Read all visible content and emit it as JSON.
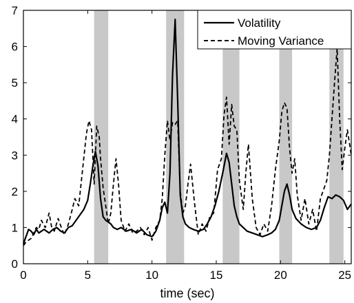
{
  "chart_data": {
    "type": "line",
    "xlabel": "time (sec)",
    "ylabel": "",
    "xlim": [
      0,
      25.5
    ],
    "ylim": [
      0,
      7
    ],
    "x_ticks": [
      0,
      5,
      10,
      15,
      20,
      25
    ],
    "y_ticks": [
      0,
      1,
      2,
      3,
      4,
      5,
      6,
      7
    ],
    "grid": false,
    "legend_position": "top-right",
    "shaded_intervals": [
      [
        5.5,
        6.6
      ],
      [
        11.1,
        12.5
      ],
      [
        15.5,
        16.8
      ],
      [
        19.9,
        20.9
      ],
      [
        23.8,
        24.9
      ]
    ],
    "shade_color": "#c8c8c8",
    "series": [
      {
        "name": "Volatility",
        "style": "solid",
        "color": "#000000",
        "x": [
          0,
          0.2,
          0.4,
          0.6,
          0.8,
          1.0,
          1.2,
          1.4,
          1.6,
          1.8,
          2.0,
          2.3,
          2.6,
          2.9,
          3.2,
          3.5,
          3.8,
          4.1,
          4.4,
          4.7,
          5.0,
          5.2,
          5.4,
          5.6,
          5.8,
          6.0,
          6.2,
          6.4,
          6.6,
          6.8,
          7.0,
          7.3,
          7.6,
          8.0,
          8.4,
          8.8,
          9.2,
          9.6,
          10.0,
          10.3,
          10.6,
          10.8,
          11.0,
          11.2,
          11.4,
          11.6,
          11.8,
          12.0,
          12.2,
          12.4,
          12.6,
          12.9,
          13.2,
          13.6,
          14.0,
          14.3,
          14.6,
          14.9,
          15.2,
          15.5,
          15.8,
          16.0,
          16.2,
          16.4,
          16.6,
          16.8,
          17.1,
          17.4,
          17.8,
          18.2,
          18.6,
          19.0,
          19.3,
          19.6,
          19.9,
          20.1,
          20.3,
          20.5,
          20.7,
          20.9,
          21.2,
          21.6,
          22.0,
          22.4,
          22.8,
          23.1,
          23.4,
          23.7,
          24.0,
          24.3,
          24.6,
          24.9,
          25.2,
          25.5
        ],
        "y": [
          0.55,
          0.75,
          0.95,
          0.9,
          0.8,
          0.95,
          0.85,
          0.9,
          0.95,
          0.9,
          0.85,
          0.95,
          1.0,
          0.9,
          0.85,
          1.0,
          1.05,
          1.2,
          1.35,
          1.5,
          1.75,
          2.2,
          2.7,
          3.1,
          2.7,
          1.8,
          1.3,
          1.2,
          1.15,
          1.1,
          1.0,
          0.95,
          1.0,
          0.9,
          0.95,
          0.85,
          0.95,
          0.8,
          0.75,
          0.9,
          1.2,
          1.55,
          1.7,
          1.4,
          2.5,
          5.2,
          6.75,
          4.5,
          1.9,
          1.3,
          1.1,
          1.0,
          0.95,
          0.9,
          0.95,
          1.1,
          1.3,
          1.6,
          2.0,
          2.5,
          3.05,
          2.8,
          2.2,
          1.6,
          1.3,
          1.1,
          1.0,
          0.9,
          0.85,
          0.8,
          0.75,
          0.8,
          0.85,
          0.95,
          1.2,
          1.6,
          2.0,
          2.2,
          1.9,
          1.5,
          1.25,
          1.1,
          1.0,
          0.95,
          1.0,
          1.2,
          1.55,
          1.85,
          1.8,
          1.9,
          1.85,
          1.75,
          1.5,
          1.65
        ]
      },
      {
        "name": "Moving Variance",
        "style": "dashed",
        "color": "#000000",
        "x": [
          0,
          0.2,
          0.4,
          0.6,
          0.8,
          1.0,
          1.2,
          1.4,
          1.7,
          2.0,
          2.2,
          2.4,
          2.7,
          3.0,
          3.2,
          3.5,
          3.8,
          4.0,
          4.3,
          4.6,
          4.9,
          5.1,
          5.3,
          5.5,
          5.7,
          5.9,
          6.0,
          6.2,
          6.4,
          6.6,
          6.8,
          7.0,
          7.2,
          7.4,
          7.6,
          7.9,
          8.2,
          8.5,
          8.8,
          9.1,
          9.4,
          9.7,
          10.0,
          10.3,
          10.6,
          10.8,
          11.0,
          11.2,
          11.4,
          11.6,
          11.8,
          12.0,
          12.2,
          12.4,
          12.6,
          12.8,
          13.0,
          13.3,
          13.6,
          13.9,
          14.2,
          14.5,
          14.8,
          15.1,
          15.4,
          15.6,
          15.8,
          16.0,
          16.2,
          16.4,
          16.6,
          16.8,
          17.1,
          17.3,
          17.5,
          17.8,
          18.1,
          18.4,
          18.7,
          19.0,
          19.3,
          19.6,
          19.9,
          20.1,
          20.3,
          20.5,
          20.7,
          20.9,
          21.1,
          21.3,
          21.6,
          21.9,
          22.2,
          22.5,
          22.8,
          23.1,
          23.4,
          23.6,
          23.8,
          24.0,
          24.2,
          24.4,
          24.6,
          24.8,
          25.0,
          25.2,
          25.5
        ],
        "y": [
          0.5,
          0.6,
          0.65,
          0.7,
          0.85,
          1.0,
          0.95,
          1.2,
          1.0,
          1.4,
          1.0,
          0.9,
          1.25,
          0.95,
          0.8,
          1.1,
          1.5,
          1.8,
          1.6,
          2.6,
          3.6,
          3.95,
          3.7,
          2.2,
          3.8,
          3.5,
          2.9,
          2.1,
          1.6,
          1.1,
          1.4,
          2.2,
          2.9,
          2.2,
          1.2,
          0.9,
          1.1,
          0.85,
          0.9,
          1.0,
          0.8,
          1.0,
          0.65,
          1.0,
          1.2,
          1.8,
          3.0,
          3.95,
          3.4,
          3.9,
          3.85,
          3.95,
          2.0,
          1.4,
          1.6,
          2.2,
          2.75,
          1.7,
          0.8,
          1.1,
          0.9,
          1.3,
          1.4,
          2.6,
          2.9,
          4.1,
          4.6,
          3.3,
          4.4,
          3.8,
          3.7,
          2.3,
          1.5,
          2.5,
          3.3,
          1.8,
          1.0,
          0.8,
          1.1,
          0.9,
          1.6,
          2.6,
          3.4,
          4.2,
          4.45,
          4.3,
          3.2,
          2.5,
          2.9,
          1.9,
          1.2,
          1.8,
          1.1,
          1.5,
          0.9,
          1.8,
          2.1,
          2.3,
          3.0,
          4.0,
          5.0,
          5.95,
          4.0,
          2.6,
          3.2,
          3.7,
          3.0
        ]
      }
    ]
  }
}
